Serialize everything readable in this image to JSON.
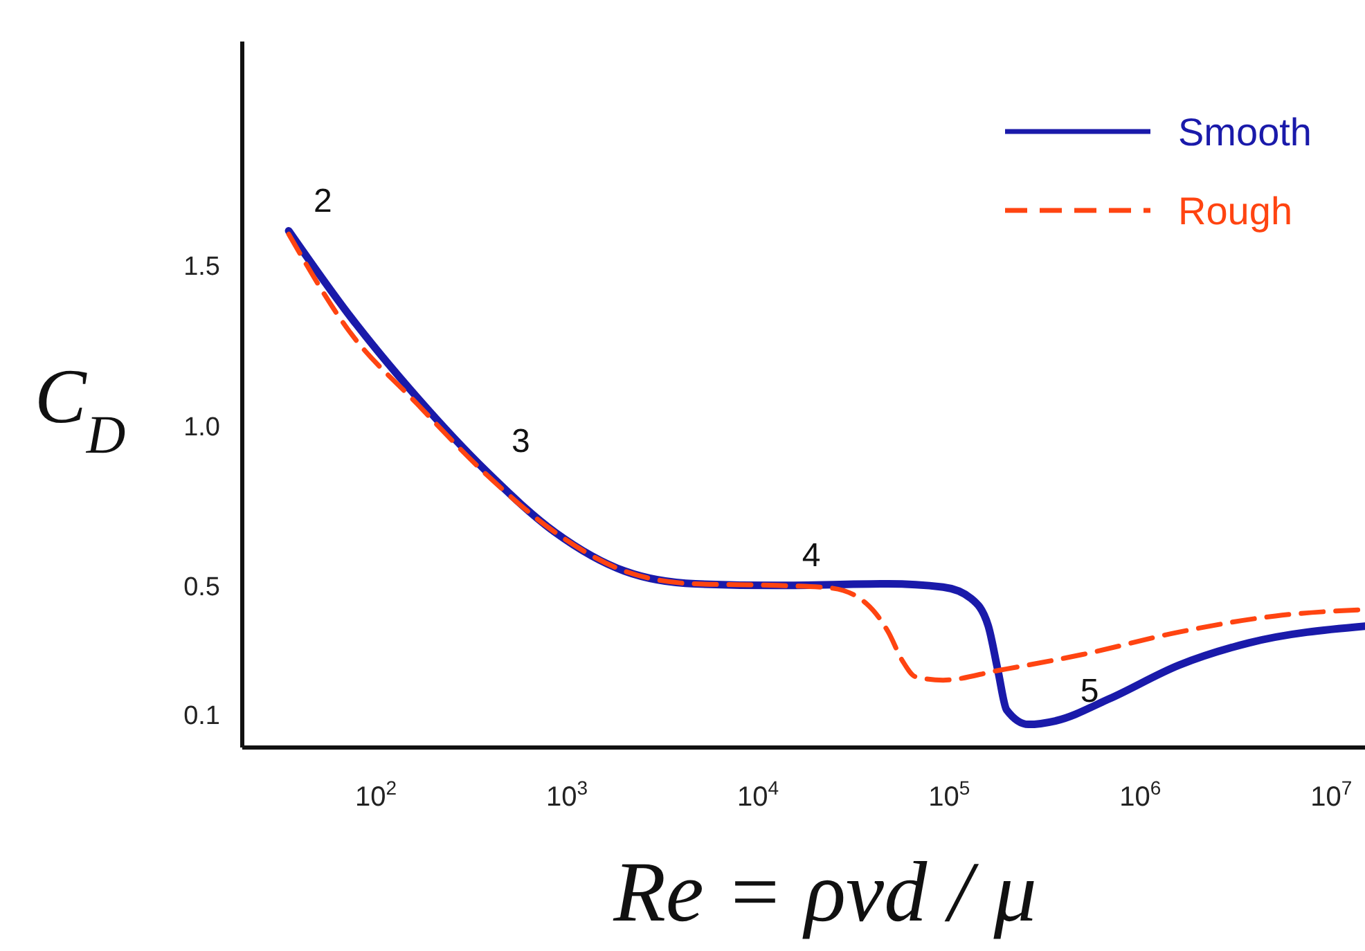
{
  "chart_data": {
    "type": "line",
    "xlabel": "Re = ρvd / μ",
    "ylabel": "C$_{D}$",
    "log": "x",
    "xlim": [
      20,
      15000000
    ],
    "ylim": [
      0,
      2.2
    ],
    "xticks": [
      {
        "value": 100,
        "label": "10$^{2}$"
      },
      {
        "value": 1000,
        "label": "10$^{3}$"
      },
      {
        "value": 10000,
        "label": "10$^{4}$"
      },
      {
        "value": 100000,
        "label": "10$^{5}$"
      },
      {
        "value": 1000000,
        "label": "10$^{6}$"
      },
      {
        "value": 10000000,
        "label": "10$^{7}$"
      }
    ],
    "yticks": [
      0.1,
      {
        "value": 0.5,
        "label": "0.5"
      },
      {
        "value": 1.0,
        "label": "1.0"
      },
      1.5
    ],
    "legend": "top right",
    "series": [
      {
        "name": "Smooth",
        "color": "#1a1aaa",
        "line_style": "solid",
        "x": [
          35,
          72,
          165,
          380,
          870,
          2000,
          4700,
          12600,
          48000,
          93000,
          130000,
          160000,
          180000,
          200000,
          260000,
          360000,
          690000,
          1600000,
          3700000,
          15000000
        ],
        "values": [
          1.61,
          1.35,
          1.09,
          0.86,
          0.67,
          0.55,
          0.51,
          0.505,
          0.51,
          0.5,
          0.465,
          0.38,
          0.24,
          0.117,
          0.072,
          0.083,
          0.152,
          0.257,
          0.326,
          0.378
        ]
      },
      {
        "name": "Rough",
        "color": "#ff4411",
        "line_style": "dashed",
        "x": [
          35,
          72,
          165,
          380,
          870,
          2000,
          4700,
          12600,
          24000,
          37000,
          48000,
          57000,
          67000,
          93000,
          180000,
          500000,
          1600000,
          5100000,
          15000000
        ],
        "values": [
          1.6,
          1.3,
          1.07,
          0.85,
          0.67,
          0.55,
          0.51,
          0.505,
          0.497,
          0.448,
          0.36,
          0.27,
          0.22,
          0.21,
          0.24,
          0.29,
          0.36,
          0.41,
          0.43
        ]
      }
    ],
    "annotations": [
      {
        "text": "2",
        "x": 35,
        "y": 1.61
      },
      {
        "text": "3",
        "x": 380,
        "y": 0.86
      },
      {
        "text": "4",
        "x": 12600,
        "y": 0.505
      },
      {
        "text": "5",
        "x": 360000,
        "y": 0.083
      }
    ]
  }
}
